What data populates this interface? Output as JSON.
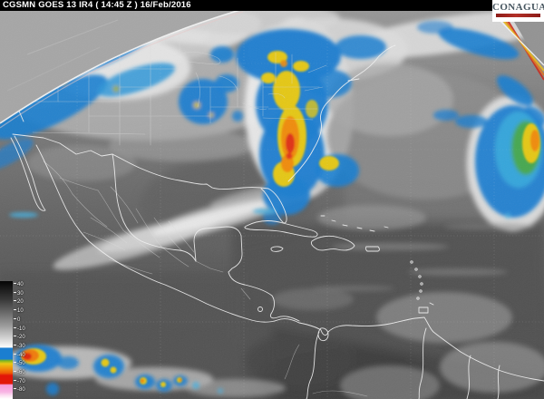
{
  "header": {
    "title": "CGSMN GOES 13 IR4 ( 14:45 Z ) 16/Feb/2016"
  },
  "satellite_info": {
    "system": "CGSMN",
    "satellite": "GOES 13",
    "channel": "IR4",
    "time": "14:45 Z",
    "date": "16/Feb/2016"
  },
  "logo": {
    "name": "CONAGUA",
    "text_color": "#46555f",
    "stripe_color": "#8c1c18",
    "background": "#ffffff"
  },
  "scale": {
    "labels": [
      "40",
      "30",
      "20",
      "10",
      "0",
      "-10",
      "-20",
      "-30",
      "-40",
      "-50",
      "-60",
      "-70",
      "-80"
    ],
    "stops": [
      {
        "color": "#050505",
        "pos": 0
      },
      {
        "color": "#3a3a3a",
        "pos": 16
      },
      {
        "color": "#9c9c9c",
        "pos": 38
      },
      {
        "color": "#fbfbfb",
        "pos": 56
      },
      {
        "color": "#1b7ed0",
        "pos": 57
      },
      {
        "color": "#1b7ed0",
        "pos": 66
      },
      {
        "color": "#7ab520",
        "pos": 67.5
      },
      {
        "color": "#e8c814",
        "pos": 70
      },
      {
        "color": "#f0930c",
        "pos": 74
      },
      {
        "color": "#ef5a06",
        "pos": 78
      },
      {
        "color": "#e21708",
        "pos": 80
      },
      {
        "color": "#e21708",
        "pos": 87
      },
      {
        "color": "#f89ad8",
        "pos": 88
      },
      {
        "color": "#f8b4e4",
        "pos": 94
      },
      {
        "color": "#fce0f2",
        "pos": 97
      },
      {
        "color": "#ffffff",
        "pos": 100
      }
    ]
  },
  "palette": {
    "cold_blue": "#1b7ed0",
    "cyan": "#38aadc",
    "green": "#4aa838",
    "yellow": "#e5c818",
    "orange": "#f08c10",
    "red": "#e02810",
    "pink": "#f89ad8",
    "titlebar": "#000000",
    "title_text": "#ffffff"
  }
}
